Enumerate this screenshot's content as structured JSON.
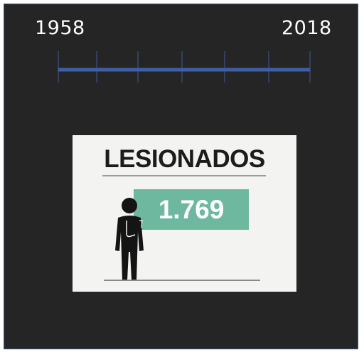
{
  "timeline": {
    "start_year": "1958",
    "end_year": "2018",
    "line_color": "#3f5ea8"
  },
  "card": {
    "title": "LESIONADOS",
    "value": "1.769",
    "value_bg": "#6eb8a0",
    "icon": "injured-person-icon"
  }
}
